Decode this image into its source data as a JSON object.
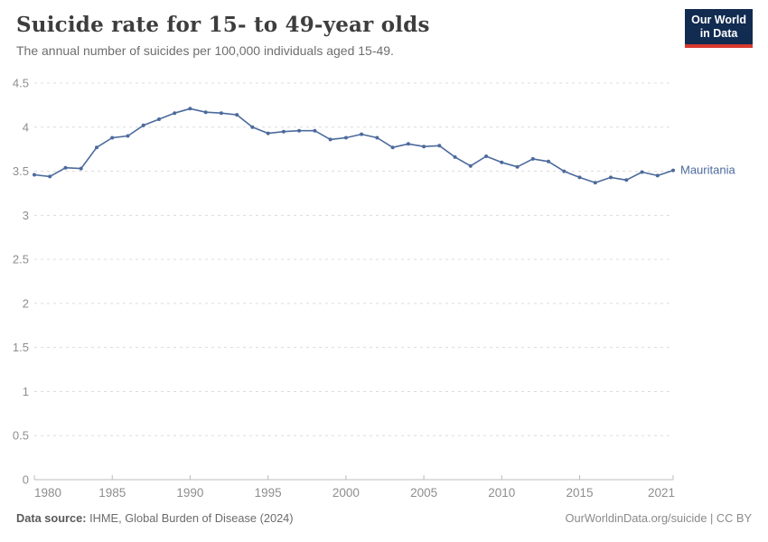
{
  "header": {
    "title": "Suicide rate for 15- to 49-year olds",
    "subtitle": "The annual number of suicides per 100,000 individuals aged 15-49.",
    "logo": {
      "line1": "Our World",
      "line2": "in Data"
    }
  },
  "chart_data": {
    "type": "line",
    "title": "Suicide rate for 15- to 49-year olds",
    "xlabel": "",
    "ylabel": "",
    "xlim": [
      1980,
      2021
    ],
    "ylim": [
      0,
      4.5
    ],
    "x_ticks": [
      1980,
      1985,
      1990,
      1995,
      2000,
      2005,
      2010,
      2015,
      2021
    ],
    "y_ticks": [
      0,
      0.5,
      1,
      1.5,
      2,
      2.5,
      3,
      3.5,
      4,
      4.5
    ],
    "grid": "horizontal-dashed",
    "legend_position": "end-of-line-label",
    "years": [
      1980,
      1981,
      1982,
      1983,
      1984,
      1985,
      1986,
      1987,
      1988,
      1989,
      1990,
      1991,
      1992,
      1993,
      1994,
      1995,
      1996,
      1997,
      1998,
      1999,
      2000,
      2001,
      2002,
      2003,
      2004,
      2005,
      2006,
      2007,
      2008,
      2009,
      2010,
      2011,
      2012,
      2013,
      2014,
      2015,
      2016,
      2017,
      2018,
      2019,
      2020,
      2021
    ],
    "series": [
      {
        "name": "Mauritania",
        "color": "#4c6a9c",
        "values": [
          3.46,
          3.44,
          3.54,
          3.53,
          3.77,
          3.88,
          3.9,
          4.02,
          4.09,
          4.16,
          4.21,
          4.17,
          4.16,
          4.14,
          4.0,
          3.93,
          3.95,
          3.96,
          3.96,
          3.86,
          3.88,
          3.92,
          3.88,
          3.77,
          3.81,
          3.78,
          3.79,
          3.66,
          3.56,
          3.67,
          3.6,
          3.55,
          3.64,
          3.61,
          3.5,
          3.43,
          3.37,
          3.43,
          3.4,
          3.49,
          3.45,
          3.51
        ]
      }
    ],
    "end_label": "Mauritania"
  },
  "footer": {
    "datasource_label": "Data source:",
    "datasource_value": " IHME, Global Burden of Disease (2024)",
    "attribution": "OurWorldinData.org/suicide | CC BY"
  },
  "colors": {
    "line": "#4c6a9c",
    "grid": "#dcdcdc",
    "axis": "#bcbcbc",
    "tick_label": "#8e8e8e",
    "logo_bg": "#112b51",
    "logo_red": "#d7392f"
  }
}
